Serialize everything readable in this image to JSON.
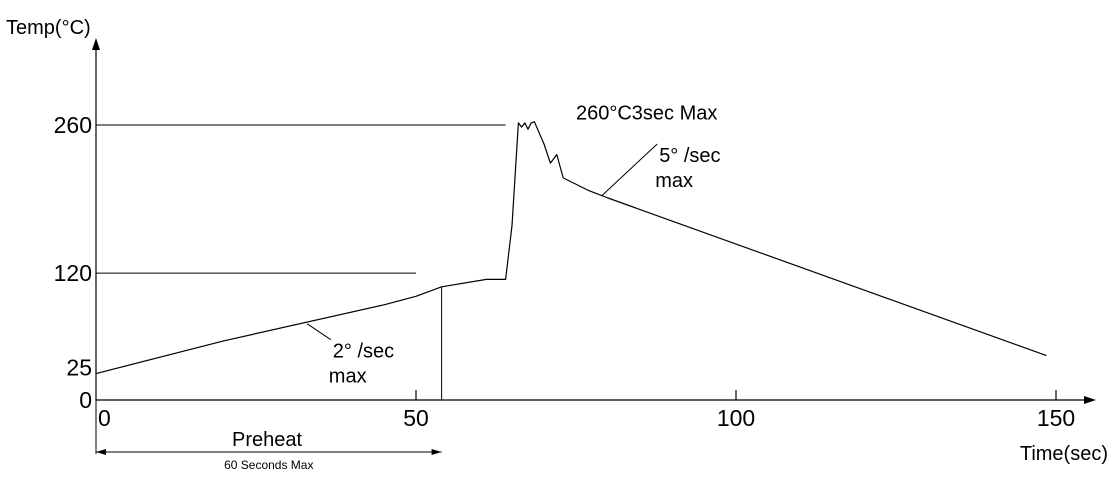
{
  "chart_data": {
    "type": "line",
    "ylabel": "Temp(°C)",
    "xlabel": "Time(sec)",
    "xlim": [
      0,
      150
    ],
    "ylim": [
      0,
      285
    ],
    "x_ticks": [
      "0",
      "50",
      "100",
      "150"
    ],
    "x_tick_values": [
      0,
      50,
      100,
      150
    ],
    "y_ticks": [
      "0",
      "25",
      "120",
      "260"
    ],
    "y_tick_values": [
      0,
      25,
      120,
      260
    ],
    "series": [
      {
        "points": [
          [
            0,
            25
          ],
          [
            20,
            56
          ],
          [
            45,
            90
          ],
          [
            50,
            98
          ],
          [
            54,
            107
          ],
          [
            61,
            114
          ],
          [
            64,
            114
          ],
          [
            65,
            165
          ],
          [
            66,
            262
          ],
          [
            66.5,
            258
          ],
          [
            67,
            262
          ],
          [
            67.5,
            256
          ],
          [
            68,
            262
          ],
          [
            68.5,
            263
          ],
          [
            70,
            242
          ],
          [
            71,
            224
          ],
          [
            72,
            232
          ],
          [
            73,
            210
          ],
          [
            77,
            198
          ],
          [
            80,
            191
          ],
          [
            148.5,
            42
          ]
        ]
      }
    ],
    "reference_lines": [
      {
        "y": 260,
        "x_start": 0,
        "x_end": 64
      },
      {
        "y": 120,
        "x_start": 0,
        "x_end": 50
      },
      {
        "x": 54,
        "y_start": 0,
        "y_end": 107
      }
    ],
    "annotations": [
      {
        "text": "260°C3sec Max",
        "x": 75,
        "y": 265
      },
      {
        "text_line1": "5° /sec",
        "text_line2": "max",
        "x": 88,
        "y": 225,
        "pointer_to": [
          79,
          193
        ]
      },
      {
        "text_line1": "2° /sec",
        "text_line2": "max",
        "x": 37,
        "y": 40,
        "pointer_to": [
          33,
          72
        ]
      }
    ],
    "preheat_label": "Preheat",
    "preheat_span": {
      "label": "60 Seconds Max",
      "x_start": 0,
      "x_end": 54
    },
    "grid": false,
    "legend": "none"
  }
}
